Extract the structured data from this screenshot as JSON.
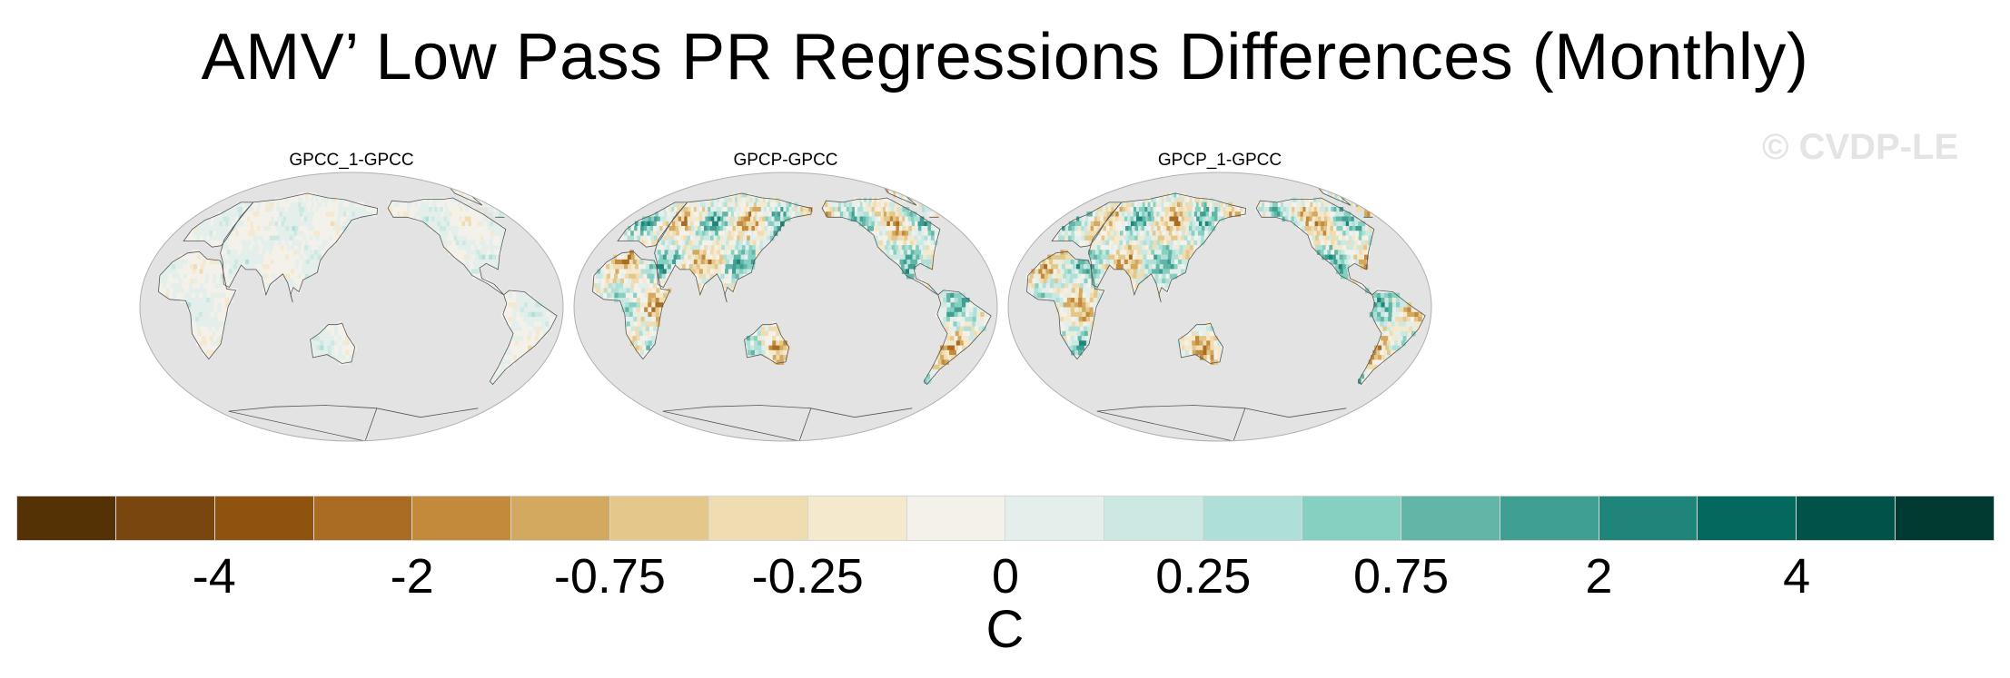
{
  "title": "AMV’ Low Pass PR Regressions Differences (Monthly)",
  "watermark": "© CVDP-LE",
  "panels": [
    {
      "label": "GPCC_1-GPCC",
      "intensity": 0.35
    },
    {
      "label": "GPCP-GPCC",
      "intensity": 1.0
    },
    {
      "label": "GPCP_1-GPCC",
      "intensity": 1.0
    }
  ],
  "colorbar": {
    "colors": [
      "#553106",
      "#7a4610",
      "#8f530f",
      "#a96c22",
      "#c28a3a",
      "#d3a85f",
      "#e4c78a",
      "#efdcb1",
      "#f5e9cd",
      "#f4f1ea",
      "#e4efec",
      "#cbe8e3",
      "#aee0d8",
      "#86d0c1",
      "#62b6a7",
      "#3f9f93",
      "#1f8479",
      "#03695e",
      "#015249",
      "#013a31"
    ],
    "tick_labels": [
      "-4",
      "-2",
      "-0.75",
      "-0.25",
      "0",
      "0.25",
      "0.75",
      "2",
      "4"
    ],
    "units": "C"
  },
  "colors": {
    "ocean": "#e3e3e3",
    "coast": "#555555",
    "land_neutral": "#f2f1ee"
  }
}
